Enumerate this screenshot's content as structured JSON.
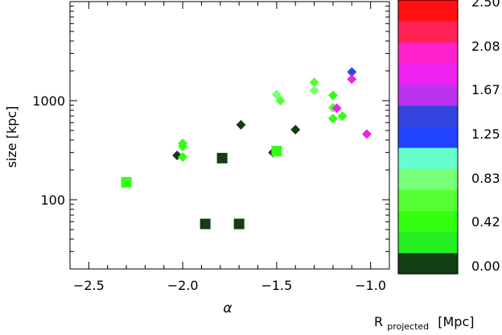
{
  "chart_data": {
    "type": "scatter",
    "title": "",
    "xlabel": "α",
    "ylabel": "size [kpc]",
    "xlim": [
      -2.6,
      -0.9
    ],
    "ylim": [
      20,
      10000
    ],
    "y_scale": "log",
    "x_ticks": [
      -2.5,
      -2.0,
      -1.5,
      -1.0
    ],
    "x_tick_labels": [
      "−2.5",
      "−2.0",
      "−1.5",
      "−1.0"
    ],
    "y_ticks": [
      100,
      1000
    ],
    "y_tick_labels": [
      "100",
      "1000"
    ],
    "grid": false,
    "legend": "none",
    "colorbar": {
      "label_main": "R",
      "label_sub": "projected",
      "label_unit": "[Mpc]",
      "range": [
        0.0,
        2.5
      ],
      "tick_values": [
        2.5,
        2.08,
        1.67,
        1.25,
        0.83,
        0.42,
        0.0
      ],
      "tick_labels": [
        "2.50",
        "2.08",
        "1.67",
        "1.25",
        "0.83",
        "0.42",
        "0.00"
      ],
      "colors_bottom_to_top": [
        "#133d13",
        "#22ee22",
        "#33ff11",
        "#55ff33",
        "#77ff77",
        "#66ffcc",
        "#2244ff",
        "#3344dd",
        "#bb33ee",
        "#ee22ee",
        "#ff22cc",
        "#ff2255",
        "#ff1111"
      ]
    },
    "series": [
      {
        "marker": "diamond",
        "points": [
          {
            "x": -2.03,
            "y": 280,
            "r": 0.0
          },
          {
            "x": -2.0,
            "y": 370,
            "r": 0.42
          },
          {
            "x": -2.0,
            "y": 345,
            "r": 0.42
          },
          {
            "x": -2.0,
            "y": 270,
            "r": 0.42
          },
          {
            "x": -1.69,
            "y": 570,
            "r": 0.0
          },
          {
            "x": -1.52,
            "y": 300,
            "r": 0.0
          },
          {
            "x": -1.5,
            "y": 1150,
            "r": 0.9
          },
          {
            "x": -1.48,
            "y": 1000,
            "r": 0.65
          },
          {
            "x": -1.4,
            "y": 510,
            "r": 0.0
          },
          {
            "x": -1.3,
            "y": 1530,
            "r": 0.6
          },
          {
            "x": -1.3,
            "y": 1270,
            "r": 0.9
          },
          {
            "x": -1.2,
            "y": 1130,
            "r": 0.42
          },
          {
            "x": -1.2,
            "y": 850,
            "r": 0.7
          },
          {
            "x": -1.2,
            "y": 660,
            "r": 0.42
          },
          {
            "x": -1.18,
            "y": 840,
            "r": 1.9
          },
          {
            "x": -1.15,
            "y": 700,
            "r": 0.42
          },
          {
            "x": -1.1,
            "y": 1950,
            "r": 1.35
          },
          {
            "x": -1.1,
            "y": 1650,
            "r": 1.75
          },
          {
            "x": -1.02,
            "y": 460,
            "r": 1.8
          }
        ]
      },
      {
        "marker": "square",
        "points": [
          {
            "x": -2.3,
            "y": 150,
            "r": 0.42
          },
          {
            "x": -1.88,
            "y": 57,
            "r": 0.0
          },
          {
            "x": -1.79,
            "y": 263,
            "r": 0.0
          },
          {
            "x": -1.7,
            "y": 57,
            "r": 0.0
          },
          {
            "x": -1.5,
            "y": 310,
            "r": 0.42
          }
        ]
      }
    ]
  }
}
